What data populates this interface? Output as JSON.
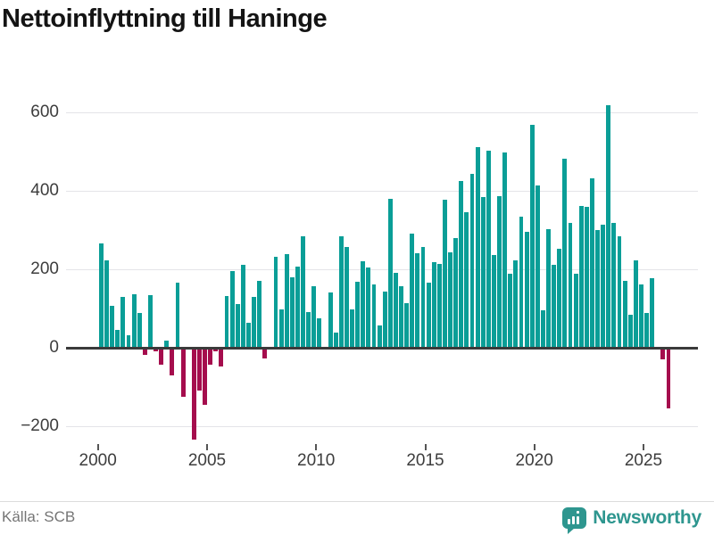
{
  "title": "Nettoinflyttning till Haninge",
  "footer": {
    "source": "Källa: SCB",
    "brand": "Newsworthy"
  },
  "colors": {
    "positive_bar": "#0a9e97",
    "negative_bar": "#a50d4d",
    "grid": "#e4e4e8",
    "zero_line": "#3a3a3a",
    "axis_text": "#3d3d3d",
    "title_text": "#141414",
    "source_text": "#757575",
    "brand_teal": "#2e968f",
    "background": "#ffffff"
  },
  "chart_data": {
    "type": "bar",
    "title": "Nettoinflyttning till Haninge",
    "grid": "horizontal",
    "legend": "none",
    "y_ticks": [
      600,
      400,
      200,
      0,
      -200
    ],
    "y_tick_labels": [
      "600",
      "400",
      "200",
      "0",
      "−200"
    ],
    "ylim": [
      -260,
      660
    ],
    "x_tick_years": [
      2000,
      2005,
      2010,
      2015,
      2020,
      2025
    ],
    "x_tick_labels": [
      "2000",
      "2005",
      "2010",
      "2015",
      "2020",
      "2025"
    ],
    "periods": [
      "2000 K1",
      "2000 K2",
      "2000 K3",
      "2000 K4",
      "2001 K1",
      "2001 K2",
      "2001 K3",
      "2001 K4",
      "2002 K1",
      "2002 K2",
      "2002 K3",
      "2002 K4",
      "2003 K1",
      "2003 K2",
      "2003 K3",
      "2003 K4",
      "2004 K1",
      "2004 K2",
      "2004 K3",
      "2004 K4",
      "2005 K1",
      "2005 K2",
      "2005 K3",
      "2005 K4",
      "2006 K1",
      "2006 K2",
      "2006 K3",
      "2006 K4",
      "2007 K1",
      "2007 K2",
      "2007 K3",
      "2007 K4",
      "2008 K1",
      "2008 K2",
      "2008 K3",
      "2008 K4",
      "2009 K1",
      "2009 K2",
      "2009 K3",
      "2009 K4",
      "2010 K1",
      "2010 K2",
      "2010 K3",
      "2010 K4",
      "2011 K1",
      "2011 K2",
      "2011 K3",
      "2011 K4",
      "2012 K1",
      "2012 K2",
      "2012 K3",
      "2012 K4",
      "2013 K1",
      "2013 K2",
      "2013 K3",
      "2013 K4",
      "2014 K1",
      "2014 K2",
      "2014 K3",
      "2014 K4",
      "2015 K1",
      "2015 K2",
      "2015 K3",
      "2015 K4",
      "2016 K1",
      "2016 K2",
      "2016 K3",
      "2016 K4",
      "2017 K1",
      "2017 K2",
      "2017 K3",
      "2017 K4",
      "2018 K1",
      "2018 K2",
      "2018 K3",
      "2018 K4",
      "2019 K1",
      "2019 K2",
      "2019 K3",
      "2019 K4",
      "2020 K1",
      "2020 K2",
      "2020 K3",
      "2020 K4",
      "2021 K1",
      "2021 K2",
      "2021 K3",
      "2021 K4",
      "2022 K1",
      "2022 K2",
      "2022 K3",
      "2022 K4",
      "2023 K1",
      "2023 K2",
      "2023 K3",
      "2023 K4",
      "2024 K1",
      "2024 K2",
      "2024 K3",
      "2024 K4",
      "2025 K1",
      "2025 K2",
      "2025 K3",
      "2025 K4",
      "2026 K1"
    ],
    "values": [
      265,
      222,
      107,
      45,
      129,
      32,
      136,
      87,
      -19,
      134,
      -11,
      -45,
      17,
      -72,
      165,
      -125,
      2,
      -234,
      -109,
      -147,
      -45,
      -9,
      -49,
      132,
      196,
      111,
      211,
      63,
      128,
      171,
      -28,
      2,
      231,
      97,
      239,
      178,
      206,
      283,
      91,
      156,
      75,
      2,
      140,
      38,
      283,
      257,
      98,
      168,
      219,
      204,
      161,
      57,
      143,
      378,
      191,
      156,
      113,
      291,
      240,
      257,
      165,
      217,
      213,
      376,
      242,
      278,
      424,
      346,
      442,
      510,
      383,
      502,
      236,
      385,
      497,
      187,
      223,
      334,
      294,
      568,
      412,
      94,
      302,
      211,
      251,
      482,
      318,
      188,
      360,
      359,
      431,
      300,
      313,
      618,
      317,
      284,
      171,
      83,
      222,
      161,
      88,
      176,
      2,
      -30,
      -155
    ]
  }
}
